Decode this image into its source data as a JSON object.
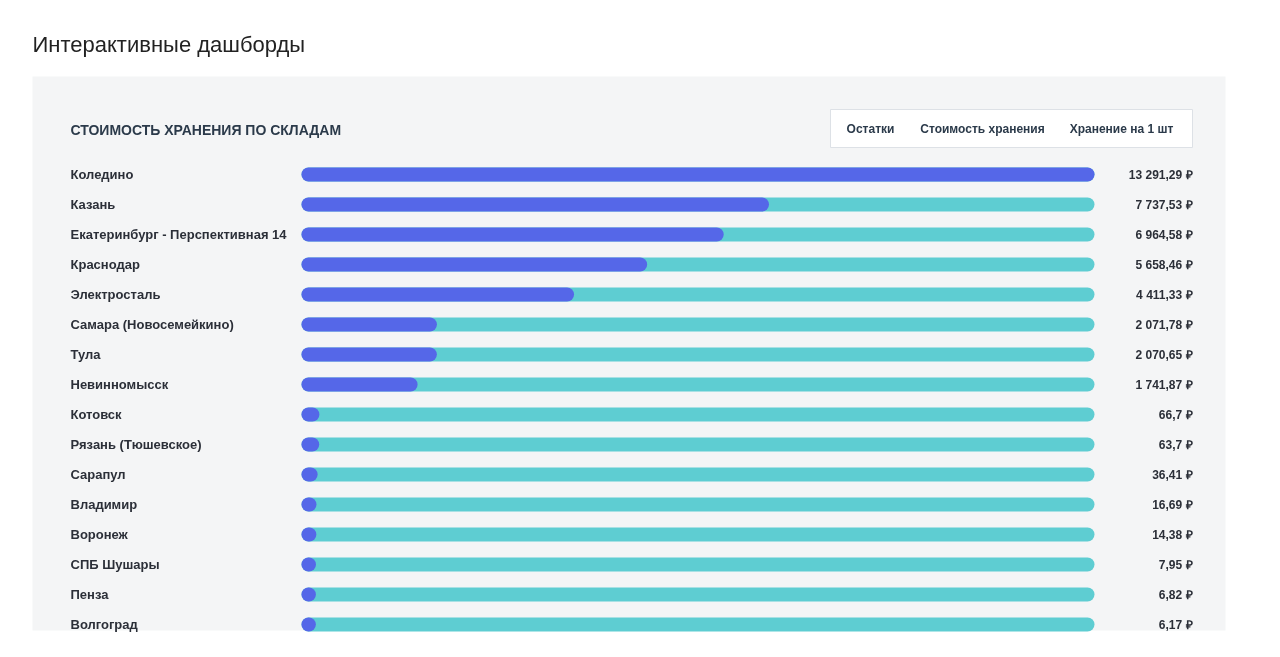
{
  "chart_data": {
    "type": "bar",
    "orientation": "horizontal",
    "title": "СТОИМОСТЬ ХРАНЕНИЯ ПО СКЛАДАМ",
    "subtitle": "Интерактивные дашборды",
    "annotations": [
      "Остатки",
      "Стоимость хранения",
      "Хранение на 1 шт"
    ],
    "categories": [
      "Коледино",
      "Казань",
      "Екатеринбург - Перспективная 14",
      "Краснодар",
      "Электросталь",
      "Самара (Новосемейкино)",
      "Тула",
      "Невинномысск",
      "Котовск",
      "Рязань (Тюшевское)",
      "Сарапул",
      "Владимир",
      "Воронеж",
      "СПБ Шушары",
      "Пенза",
      "Волгоград"
    ],
    "series": [
      {
        "color": "#5567e8",
        "values": [
          13291.29,
          7737.53,
          6964.58,
          5658.46,
          4411.33,
          2071.78,
          2070.65,
          1741.87,
          66.7,
          63.7,
          36.41,
          16.69,
          14.38,
          7.95,
          6.82,
          6.17
        ],
        "value_labels": [
          "13 291,29 ₽",
          "7 737,53 ₽",
          "6 964,58 ₽",
          "5 658,46 ₽",
          "4 411,33 ₽",
          "2 071,78 ₽",
          "2 070,65 ₽",
          "1 741,87 ₽",
          "66,7 ₽",
          "63,7 ₽",
          "36,41 ₽",
          "16,69 ₽",
          "14,38 ₽",
          "7,95 ₽",
          "6,82 ₽",
          "6,17 ₽"
        ]
      }
    ],
    "grid": "y"
  }
}
